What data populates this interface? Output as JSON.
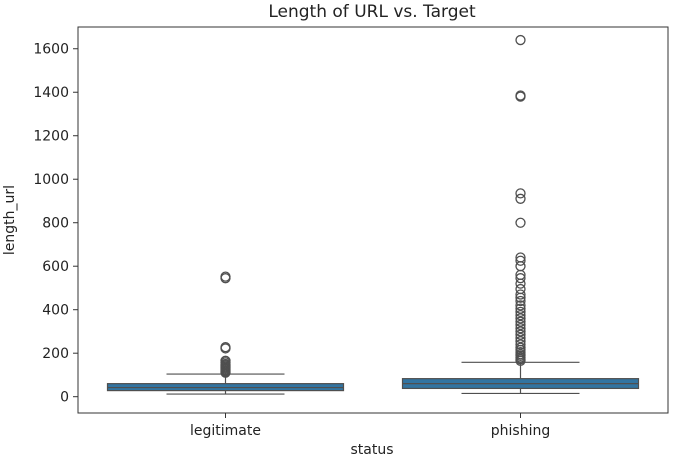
{
  "chart_data": {
    "type": "box",
    "title": "Length of URL vs. Target",
    "xlabel": "status",
    "ylabel": "length_url",
    "ylim": [
      -75,
      1700
    ],
    "yticks": [
      0,
      200,
      400,
      600,
      800,
      1000,
      1200,
      1400,
      1600
    ],
    "categories": [
      "legitimate",
      "phishing"
    ],
    "box_color": "#3274a1",
    "series": [
      {
        "category": "legitimate",
        "whisker_low": 12,
        "q1": 28,
        "median": 42,
        "q3": 60,
        "whisker_high": 104,
        "outliers": [
          110,
          115,
          120,
          125,
          130,
          135,
          140,
          145,
          150,
          158,
          165,
          222,
          228,
          545,
          552
        ]
      },
      {
        "category": "phishing",
        "whisker_low": 15,
        "q1": 38,
        "median": 60,
        "q3": 83,
        "whisker_high": 158,
        "outliers": [
          165,
          172,
          180,
          188,
          195,
          205,
          215,
          225,
          240,
          255,
          270,
          285,
          300,
          315,
          330,
          345,
          360,
          375,
          390,
          405,
          420,
          440,
          455,
          470,
          495,
          520,
          545,
          560,
          600,
          625,
          640,
          800,
          910,
          935,
          1380,
          1385,
          1640
        ]
      }
    ]
  }
}
